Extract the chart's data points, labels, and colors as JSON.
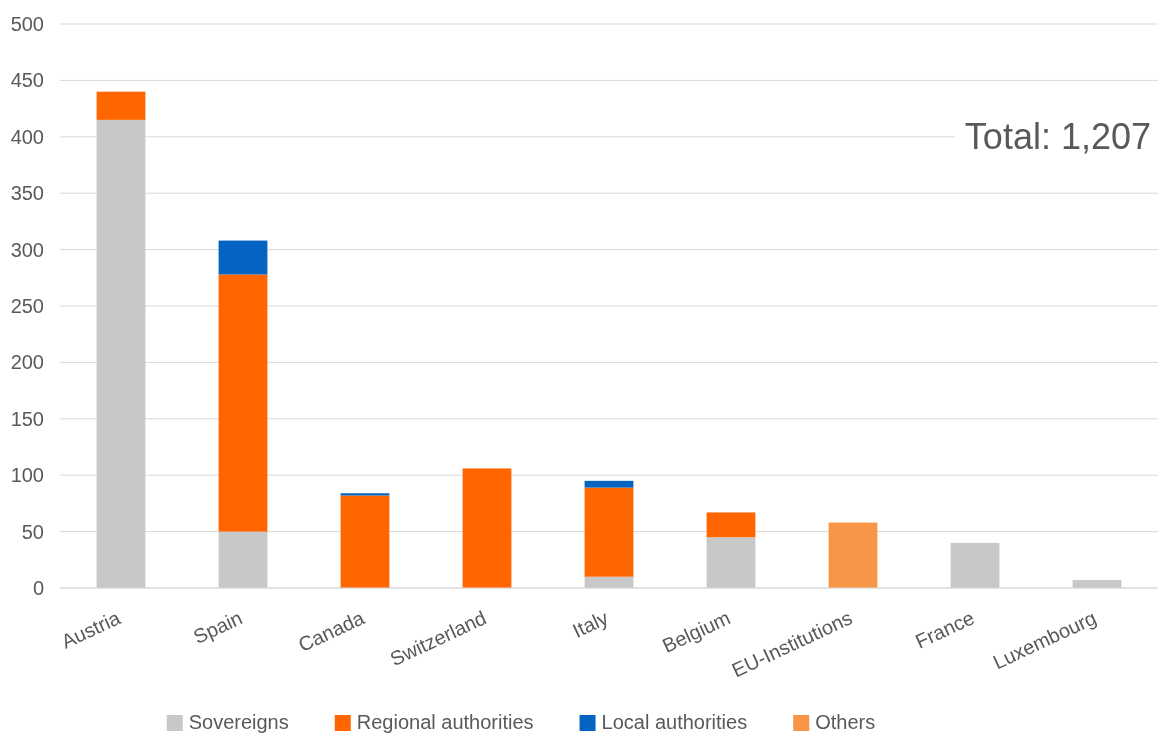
{
  "chart_data": {
    "type": "bar",
    "stacked": true,
    "categories": [
      "Austria",
      "Spain",
      "Canada",
      "Switzerland",
      "Italy",
      "Belgium",
      "EU-Institutions",
      "France",
      "Luxembourg"
    ],
    "series": [
      {
        "name": "Sovereigns",
        "color": "#c8c8c8",
        "values": [
          415,
          50,
          null,
          null,
          10,
          45,
          null,
          40,
          7
        ]
      },
      {
        "name": "Regional authorities",
        "color": "#ff6600",
        "values": [
          25,
          228,
          82,
          106,
          79,
          22,
          null,
          null,
          null
        ]
      },
      {
        "name": "Local authorities",
        "color": "#0563c1",
        "values": [
          null,
          30,
          2,
          null,
          6,
          null,
          null,
          null,
          null
        ]
      },
      {
        "name": "Others",
        "color": "#f79646",
        "values": [
          null,
          null,
          null,
          null,
          null,
          null,
          58,
          null,
          null
        ]
      }
    ],
    "ylim": [
      0,
      500
    ],
    "yticks": [
      0,
      50,
      100,
      150,
      200,
      250,
      300,
      350,
      400,
      450,
      500
    ],
    "grid": "y",
    "legend": "bottom",
    "annotations": [
      "Total: 1,207"
    ]
  }
}
